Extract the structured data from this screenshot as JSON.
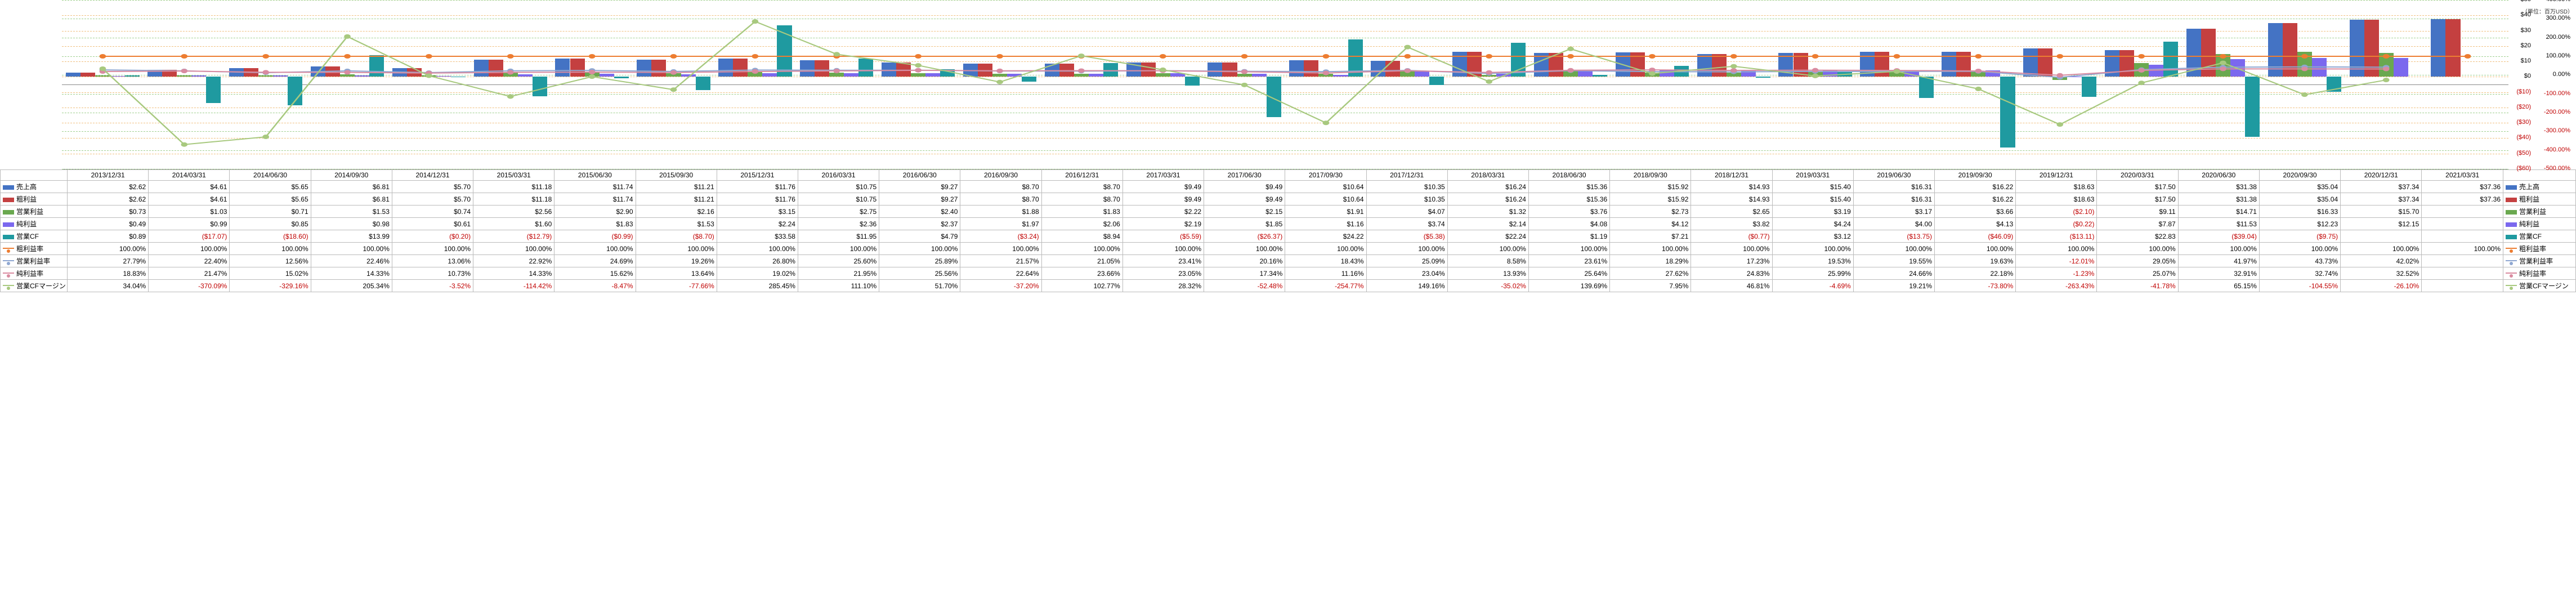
{
  "unit_label": "（単位：百万USD）",
  "left_axis": {
    "min": -60,
    "max": 50,
    "step": 10,
    "ticks": [
      "$50",
      "$40",
      "$30",
      "$20",
      "$10",
      "$0",
      "($10)",
      "($20)",
      "($30)",
      "($40)",
      "($50)",
      "($60)"
    ]
  },
  "right_axis": {
    "min": -500,
    "max": 400,
    "step": 100,
    "ticks": [
      "400.00%",
      "300.00%",
      "200.00%",
      "100.00%",
      "0.00%",
      "-100.00%",
      "-200.00%",
      "-300.00%",
      "-400.00%",
      "-500.00%"
    ]
  },
  "dates": [
    "2013/12/31",
    "2014/03/31",
    "2014/06/30",
    "2014/09/30",
    "2014/12/31",
    "2015/03/31",
    "2015/06/30",
    "2015/09/30",
    "2015/12/31",
    "2016/03/31",
    "2016/06/30",
    "2016/09/30",
    "2016/12/31",
    "2017/03/31",
    "2017/06/30",
    "2017/09/30",
    "2017/12/31",
    "2018/03/31",
    "2018/06/30",
    "2018/09/30",
    "2018/12/31",
    "2019/03/31",
    "2019/06/30",
    "2019/09/30",
    "2019/12/31",
    "2020/03/31",
    "2020/06/30",
    "2020/09/30",
    "2020/12/31",
    "2021/03/31"
  ],
  "colors": {
    "sales": "#4473c4",
    "gross": "#c44040",
    "opinc": "#6aa84f",
    "netinc": "#7b68ee",
    "opcf": "#1f9aa0",
    "gross_margin": "#ed7d31",
    "op_margin": "#8fa7d1",
    "net_margin": "#d98ba0",
    "opcf_margin": "#a8c97f",
    "grid_orange": "#f0c080",
    "grid_green": "#a0d090",
    "grid_gray": "#d0d0d0"
  },
  "series": {
    "sales": {
      "label": "売上高",
      "type": "bar",
      "axis": "left",
      "values": [
        2.62,
        4.61,
        5.65,
        6.81,
        5.7,
        11.18,
        11.74,
        11.21,
        11.76,
        10.75,
        9.27,
        8.7,
        8.7,
        9.49,
        9.49,
        10.64,
        10.35,
        16.24,
        15.36,
        15.92,
        14.93,
        15.4,
        16.31,
        16.22,
        18.63,
        17.5,
        31.38,
        35.04,
        37.34,
        37.36
      ]
    },
    "gross": {
      "label": "粗利益",
      "type": "bar",
      "axis": "left",
      "values": [
        2.62,
        4.61,
        5.65,
        6.81,
        5.7,
        11.18,
        11.74,
        11.21,
        11.76,
        10.75,
        9.27,
        8.7,
        8.7,
        9.49,
        9.49,
        10.64,
        10.35,
        16.24,
        15.36,
        15.92,
        14.93,
        15.4,
        16.31,
        16.22,
        18.63,
        17.5,
        31.38,
        35.04,
        37.34,
        37.36
      ]
    },
    "opinc": {
      "label": "営業利益",
      "type": "bar",
      "axis": "left",
      "values": [
        0.73,
        1.03,
        0.71,
        1.53,
        0.74,
        2.56,
        2.9,
        2.16,
        3.15,
        2.75,
        2.4,
        1.88,
        1.83,
        2.22,
        2.15,
        1.91,
        4.07,
        1.32,
        3.76,
        2.73,
        2.65,
        3.19,
        3.17,
        3.66,
        -2.1,
        9.11,
        14.71,
        16.33,
        15.7,
        null
      ]
    },
    "netinc": {
      "label": "純利益",
      "type": "bar",
      "axis": "left",
      "values": [
        0.49,
        0.99,
        0.85,
        0.98,
        0.61,
        1.6,
        1.83,
        1.53,
        2.24,
        2.36,
        2.37,
        1.97,
        2.06,
        2.19,
        1.85,
        1.16,
        3.74,
        2.14,
        4.08,
        4.12,
        3.82,
        4.24,
        4.0,
        4.13,
        -0.22,
        7.87,
        11.53,
        12.23,
        12.15,
        null
      ]
    },
    "opcf": {
      "label": "営業CF",
      "type": "bar",
      "axis": "left",
      "values": [
        0.89,
        -17.07,
        -18.6,
        13.99,
        -0.2,
        -12.79,
        -0.99,
        -8.7,
        33.58,
        11.95,
        4.79,
        -3.24,
        8.94,
        -5.59,
        -26.37,
        24.22,
        -5.38,
        22.24,
        1.19,
        7.21,
        -0.77,
        3.12,
        -13.75,
        -46.09,
        -13.11,
        22.83,
        -39.04,
        -9.75,
        null,
        null
      ]
    },
    "gross_margin": {
      "label": "粗利益率",
      "type": "line",
      "axis": "right",
      "values": [
        100,
        100,
        100,
        100,
        100,
        100,
        100,
        100,
        100,
        100,
        100,
        100,
        100,
        100,
        100,
        100,
        100,
        100,
        100,
        100,
        100,
        100,
        100,
        100,
        100,
        100,
        100,
        100,
        100,
        100
      ]
    },
    "op_margin": {
      "label": "営業利益率",
      "type": "line",
      "axis": "right",
      "values": [
        27.79,
        22.4,
        12.56,
        22.46,
        13.06,
        22.92,
        24.69,
        19.26,
        26.8,
        25.6,
        25.89,
        21.57,
        21.05,
        23.41,
        20.16,
        18.43,
        25.09,
        8.58,
        23.61,
        18.29,
        17.23,
        19.53,
        19.55,
        19.63,
        -12.01,
        29.05,
        41.97,
        43.73,
        42.02,
        null
      ]
    },
    "net_margin": {
      "label": "純利益率",
      "type": "line",
      "axis": "right",
      "values": [
        18.83,
        21.47,
        15.02,
        14.33,
        10.73,
        14.33,
        15.62,
        13.64,
        19.02,
        21.95,
        25.56,
        22.64,
        23.66,
        23.05,
        17.34,
        11.16,
        23.04,
        13.93,
        25.64,
        27.62,
        24.83,
        25.99,
        24.66,
        22.18,
        -1.23,
        25.07,
        32.91,
        32.74,
        32.52,
        null
      ]
    },
    "opcf_margin": {
      "label": "営業CFマージン",
      "type": "line",
      "axis": "right",
      "values": [
        34.04,
        -370.09,
        -329.16,
        205.34,
        -3.52,
        -114.42,
        -8.47,
        -77.66,
        285.45,
        111.1,
        51.7,
        -37.2,
        102.77,
        28.32,
        -52.48,
        -254.77,
        149.16,
        -35.02,
        139.69,
        7.95,
        46.81,
        -4.69,
        19.21,
        -73.8,
        -263.43,
        -41.78,
        65.15,
        -104.55,
        -26.1,
        null
      ]
    }
  },
  "row_order": [
    "sales",
    "gross",
    "opinc",
    "netinc",
    "opcf",
    "gross_margin",
    "op_margin",
    "net_margin",
    "opcf_margin"
  ],
  "bar_order": [
    "sales",
    "gross",
    "opinc",
    "netinc",
    "opcf"
  ],
  "line_order": [
    "gross_margin",
    "op_margin",
    "net_margin",
    "opcf_margin"
  ],
  "fmt": {
    "sales": "usd",
    "gross": "usd",
    "opinc": "usd",
    "netinc": "usd",
    "opcf": "usd",
    "gross_margin": "pct",
    "op_margin": "pct",
    "net_margin": "pct",
    "opcf_margin": "pct"
  }
}
